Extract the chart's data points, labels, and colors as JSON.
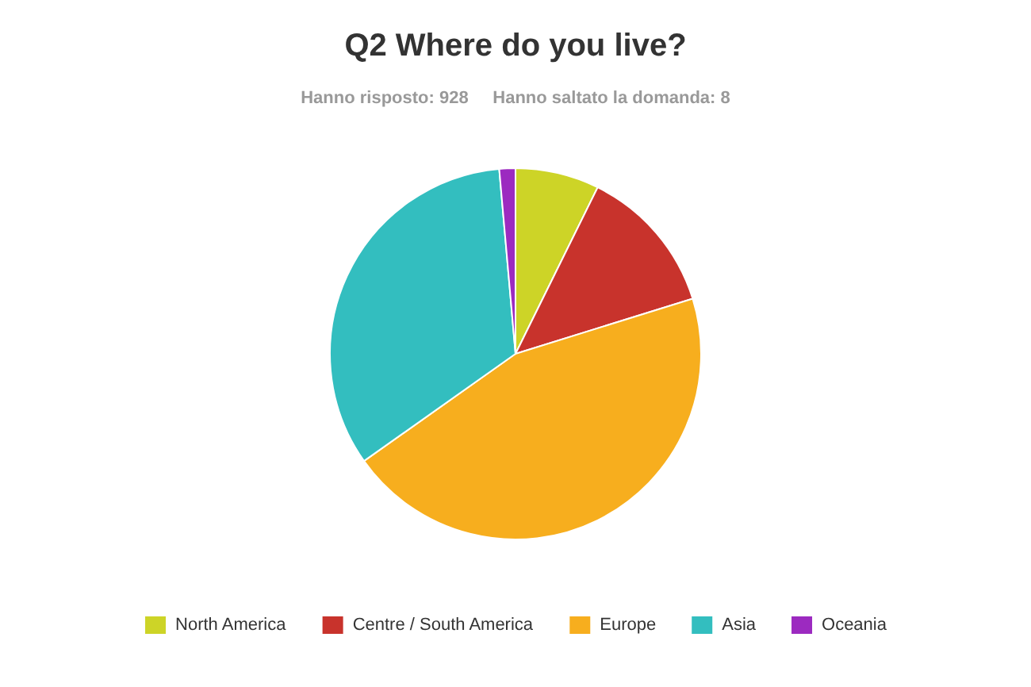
{
  "chart_data": {
    "type": "pie",
    "title": "Q2 Where do you live?",
    "subtitle": "Hanno risposto: 928     Hanno saltato la domanda: 8",
    "categories": [
      "North America",
      "Centre / South America",
      "Europe",
      "Asia",
      "Oceania"
    ],
    "values": [
      7.3,
      12.9,
      45.0,
      33.4,
      1.4
    ],
    "colors": [
      "#cdd427",
      "#c8332c",
      "#f7ae1e",
      "#33bebf",
      "#9c2ac0"
    ],
    "legend": "bottom"
  }
}
